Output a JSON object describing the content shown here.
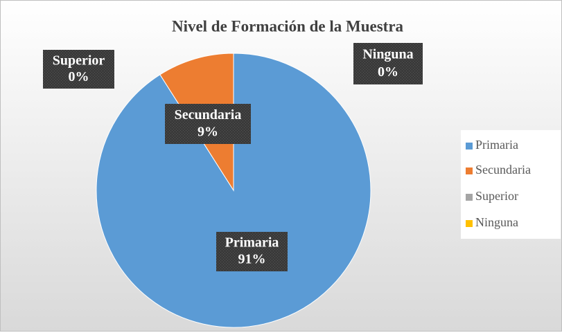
{
  "chart_data": {
    "type": "pie",
    "title": "Nivel de Formación de la Muestra",
    "categories": [
      "Primaria",
      "Secundaria",
      "Superior",
      "Ninguna"
    ],
    "values": [
      91,
      9,
      0,
      0
    ],
    "value_labels": [
      "91%",
      "9%",
      "0%",
      "0%"
    ],
    "colors": [
      "#5b9bd5",
      "#ed7d31",
      "#a5a5a5",
      "#ffc000"
    ],
    "legend": "right"
  }
}
